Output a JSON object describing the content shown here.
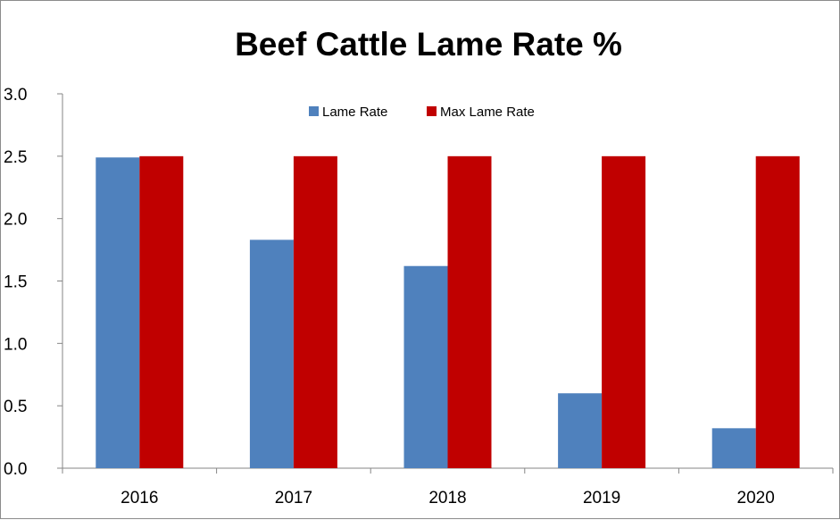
{
  "chart_data": {
    "type": "bar",
    "title": "Beef Cattle Lame Rate %",
    "xlabel": "",
    "ylabel": "",
    "categories": [
      "2016",
      "2017",
      "2018",
      "2019",
      "2020"
    ],
    "series": [
      {
        "name": "Lame Rate",
        "values": [
          2.49,
          1.83,
          1.62,
          0.6,
          0.32
        ],
        "color": "#4f81bd"
      },
      {
        "name": "Max Lame Rate",
        "values": [
          2.5,
          2.5,
          2.5,
          2.5,
          2.5
        ],
        "color": "#c00000"
      }
    ],
    "ylim": [
      0,
      3.0
    ],
    "yticks": [
      "0.0",
      "0.5",
      "1.0",
      "1.5",
      "2.0",
      "2.5",
      "3.0"
    ],
    "grid": false,
    "legend": {
      "placement": "top",
      "entries": [
        "Lame Rate",
        "Max Lame Rate"
      ]
    }
  }
}
